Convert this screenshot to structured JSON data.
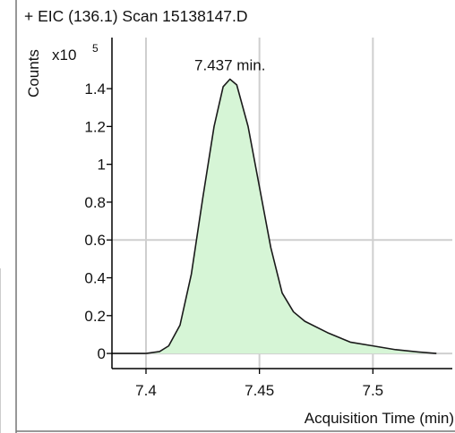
{
  "header": {
    "title": "+ EIC (136.1) Scan 15138147.D"
  },
  "chart_data": {
    "type": "area",
    "title": "+ EIC (136.1) Scan 15138147.D",
    "xlabel": "Acquisition Time (min)",
    "ylabel": "Counts",
    "y_multiplier_base": "x10",
    "y_multiplier_exp": "5",
    "xlim": [
      7.385,
      7.535
    ],
    "ylim": [
      -0.08,
      1.67
    ],
    "x_ticks": [
      {
        "value": 7.4,
        "label": "7.4"
      },
      {
        "value": 7.45,
        "label": "7.45"
      },
      {
        "value": 7.5,
        "label": "7.5"
      }
    ],
    "y_ticks": [
      {
        "value": 0,
        "label": "0"
      },
      {
        "value": 0.2,
        "label": "0.2"
      },
      {
        "value": 0.4,
        "label": "0.4"
      },
      {
        "value": 0.6,
        "label": "0.6"
      },
      {
        "value": 0.8,
        "label": "0.8"
      },
      {
        "value": 1.0,
        "label": "1"
      },
      {
        "value": 1.2,
        "label": "1.2"
      },
      {
        "value": 1.4,
        "label": "1.4"
      }
    ],
    "grid": true,
    "series": [
      {
        "x": [
          7.385,
          7.4,
          7.406,
          7.41,
          7.415,
          7.42,
          7.425,
          7.43,
          7.434,
          7.437,
          7.44,
          7.445,
          7.45,
          7.455,
          7.46,
          7.465,
          7.47,
          7.48,
          7.49,
          7.5,
          7.51,
          7.52,
          7.528
        ],
        "y": [
          0.0,
          0.0,
          0.01,
          0.04,
          0.15,
          0.42,
          0.82,
          1.2,
          1.41,
          1.45,
          1.42,
          1.2,
          0.88,
          0.56,
          0.32,
          0.22,
          0.17,
          0.11,
          0.06,
          0.04,
          0.02,
          0.008,
          0.0
        ]
      }
    ],
    "annotations": [
      {
        "text": "7.437 min.",
        "x": 7.437,
        "y": 1.45
      }
    ],
    "colors": {
      "fill": "#d6f5d6",
      "line": "#1a1a1a",
      "grid": "#cfcfcf"
    }
  }
}
